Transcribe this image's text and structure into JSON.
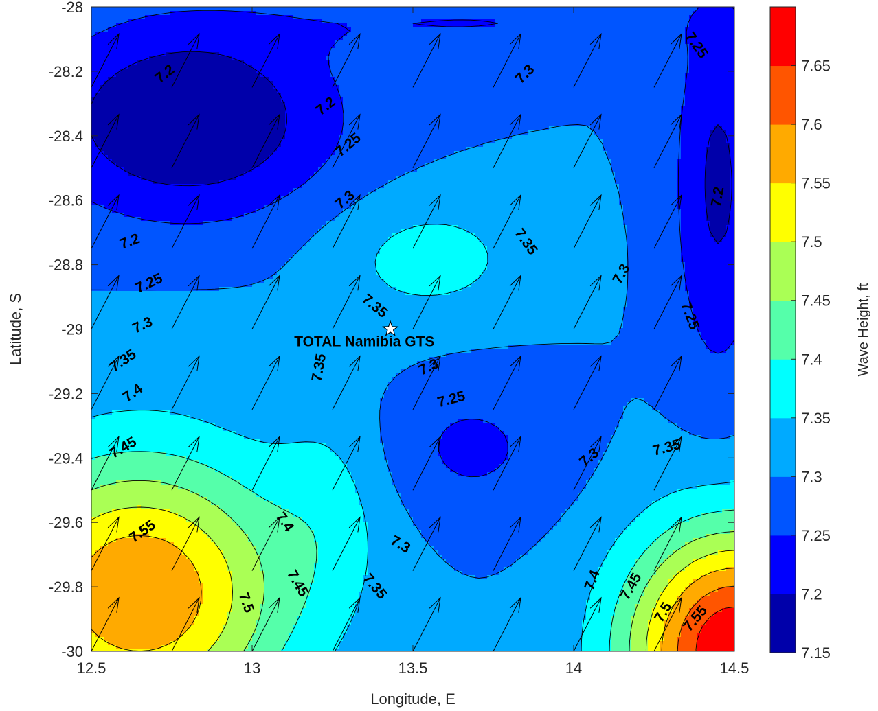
{
  "chart_data": {
    "type": "contour",
    "title": "",
    "xlabel": "Longitude, E",
    "ylabel": "Latitude, S",
    "xlim": [
      12.5,
      14.5
    ],
    "ylim": [
      -30,
      -28
    ],
    "x_ticks": [
      "12.5",
      "13",
      "13.5",
      "14",
      "14.5"
    ],
    "y_ticks": [
      "-28",
      "-28.2",
      "-28.4",
      "-28.6",
      "-28.8",
      "-29",
      "-29.2",
      "-29.4",
      "-29.6",
      "-29.8",
      "-30"
    ],
    "grid": false,
    "colorbar": {
      "label": "Wave Height, ft",
      "ticks": [
        "7.15",
        "7.2",
        "7.25",
        "7.3",
        "7.35",
        "7.4",
        "7.45",
        "7.5",
        "7.55",
        "7.6",
        "7.65"
      ],
      "levels": [
        7.15,
        7.2,
        7.25,
        7.3,
        7.35,
        7.4,
        7.45,
        7.5,
        7.55,
        7.6,
        7.65,
        7.7
      ],
      "colors": [
        "#0000aa",
        "#0000ff",
        "#0055ff",
        "#00aaff",
        "#00ffff",
        "#55ffaa",
        "#aaff55",
        "#ffff00",
        "#ffaa00",
        "#ff5500",
        "#ff0000"
      ]
    },
    "site": {
      "name": "TOTAL Namibia GTS",
      "lon": 13.43,
      "lat": -29.0
    },
    "contour_labels": [
      {
        "text": "7.2",
        "lon": 12.73,
        "lat": -28.21,
        "rot": -38
      },
      {
        "text": "7.2",
        "lon": 12.62,
        "lat": -28.73,
        "rot": -20
      },
      {
        "text": "7.2",
        "lon": 13.23,
        "lat": -28.31,
        "rot": -38
      },
      {
        "text": "7.25",
        "lon": 13.3,
        "lat": -28.43,
        "rot": -40
      },
      {
        "text": "7.3",
        "lon": 13.29,
        "lat": -28.6,
        "rot": -40
      },
      {
        "text": "7.25",
        "lon": 12.68,
        "lat": -28.86,
        "rot": -25
      },
      {
        "text": "7.3",
        "lon": 12.66,
        "lat": -28.99,
        "rot": -25
      },
      {
        "text": "7.35",
        "lon": 12.6,
        "lat": -29.1,
        "rot": -35
      },
      {
        "text": "7.4",
        "lon": 12.63,
        "lat": -29.2,
        "rot": -35
      },
      {
        "text": "7.45",
        "lon": 12.6,
        "lat": -29.37,
        "rot": -30
      },
      {
        "text": "7.55",
        "lon": 12.66,
        "lat": -29.63,
        "rot": -35
      },
      {
        "text": "7.35",
        "lon": 13.38,
        "lat": -28.93,
        "rot": 40
      },
      {
        "text": "7.35",
        "lon": 13.21,
        "lat": -29.12,
        "rot": -80
      },
      {
        "text": "7.3",
        "lon": 13.55,
        "lat": -29.12,
        "rot": -25
      },
      {
        "text": "7.25",
        "lon": 13.62,
        "lat": -29.22,
        "rot": -15
      },
      {
        "text": "7.3",
        "lon": 13.85,
        "lat": -28.21,
        "rot": -45
      },
      {
        "text": "7.35",
        "lon": 13.85,
        "lat": -28.73,
        "rot": 55
      },
      {
        "text": "7.3",
        "lon": 14.15,
        "lat": -28.83,
        "rot": -60
      },
      {
        "text": "7.25",
        "lon": 14.38,
        "lat": -28.12,
        "rot": 55
      },
      {
        "text": "7.2",
        "lon": 14.45,
        "lat": -28.59,
        "rot": -80
      },
      {
        "text": "7.25",
        "lon": 14.36,
        "lat": -28.96,
        "rot": 70
      },
      {
        "text": "7.3",
        "lon": 14.05,
        "lat": -29.4,
        "rot": -40
      },
      {
        "text": "7.35",
        "lon": 14.29,
        "lat": -29.37,
        "rot": -15
      },
      {
        "text": "7.4",
        "lon": 13.1,
        "lat": -29.6,
        "rot": 55
      },
      {
        "text": "7.45",
        "lon": 13.14,
        "lat": -29.79,
        "rot": 60
      },
      {
        "text": "7.5",
        "lon": 12.98,
        "lat": -29.85,
        "rot": 70
      },
      {
        "text": "7.3",
        "lon": 13.46,
        "lat": -29.67,
        "rot": 30
      },
      {
        "text": "7.35",
        "lon": 13.38,
        "lat": -29.8,
        "rot": 50
      },
      {
        "text": "7.4",
        "lon": 14.06,
        "lat": -29.78,
        "rot": -70
      },
      {
        "text": "7.45",
        "lon": 14.18,
        "lat": -29.8,
        "rot": -60
      },
      {
        "text": "7.5",
        "lon": 14.28,
        "lat": -29.88,
        "rot": -60
      },
      {
        "text": "7.55",
        "lon": 14.38,
        "lat": -29.9,
        "rot": -50
      }
    ]
  }
}
